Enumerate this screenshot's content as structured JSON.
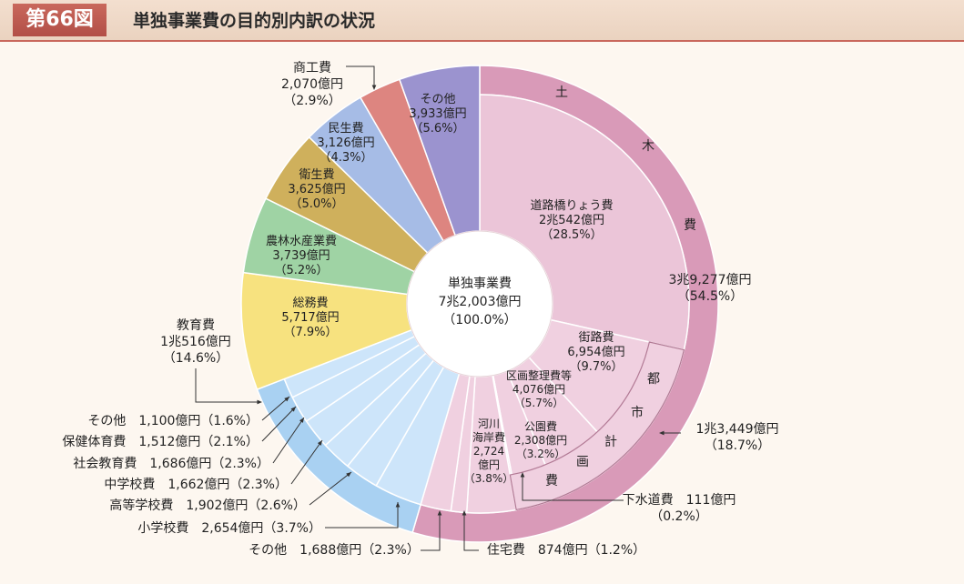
{
  "header": {
    "figure_number": "第66図",
    "title": "単独事業費の目的別内訳の状況"
  },
  "colors": {
    "header_accent": "#c0594f",
    "civil_outer": "#d99ab8",
    "education_outer": "#a9d1f2"
  },
  "chart_data": {
    "type": "pie",
    "subtype": "nested donut",
    "start": "12 o'clock",
    "direction": "clockwise",
    "center": {
      "lines": [
        "単独事業費",
        "7兆2,003億円",
        "（100.0%）"
      ]
    },
    "inner": [
      {
        "key": "road",
        "lines": [
          "道路橋りょう費",
          "2兆542億円",
          "（28.5%）"
        ],
        "value_oku": 20542,
        "percent": 28.5,
        "color": "#ebc5d8"
      },
      {
        "key": "street",
        "lines": [
          "街路費",
          "6,954億円",
          "（9.7%）"
        ],
        "value_oku": 6954,
        "percent": 9.7,
        "color": "#f0d0e0"
      },
      {
        "key": "land",
        "lines": [
          "区画整理費等",
          "4,076億円",
          "（5.7%）"
        ],
        "value_oku": 4076,
        "percent": 5.7,
        "color": "#f0d0e0"
      },
      {
        "key": "park",
        "lines": [
          "公園費",
          "2,308億円",
          "（3.2%）"
        ],
        "value_oku": 2308,
        "percent": 3.2,
        "color": "#f0d0e0"
      },
      {
        "key": "sewer",
        "value_oku": 111,
        "percent": 0.2,
        "color": "#f0d0e0"
      },
      {
        "key": "river",
        "lines": [
          "河川",
          "海岸費",
          "2,724",
          "億円",
          "（3.8%）"
        ],
        "value_oku": 2724,
        "percent": 3.8,
        "color": "#f0d0e0"
      },
      {
        "key": "housing",
        "value_oku": 874,
        "percent": 1.2,
        "color": "#f0d0e0"
      },
      {
        "key": "civil-other",
        "value_oku": 1688,
        "percent": 2.3,
        "color": "#f0d0e0"
      },
      {
        "key": "elementary",
        "value_oku": 2654,
        "percent": 3.7,
        "color": "#cde5fa"
      },
      {
        "key": "highschool",
        "value_oku": 1902,
        "percent": 2.6,
        "color": "#cde5fa"
      },
      {
        "key": "middle",
        "value_oku": 1662,
        "percent": 2.3,
        "color": "#cde5fa"
      },
      {
        "key": "social-edu",
        "value_oku": 1686,
        "percent": 2.3,
        "color": "#cde5fa"
      },
      {
        "key": "sports",
        "value_oku": 1512,
        "percent": 2.1,
        "color": "#cde5fa"
      },
      {
        "key": "edu-other",
        "value_oku": 1100,
        "percent": 1.6,
        "color": "#cde5fa"
      },
      {
        "key": "general",
        "lines": [
          "総務費",
          "5,717億円",
          "（7.9%）"
        ],
        "value_oku": 5717,
        "percent": 7.9,
        "color": "#f7e27f"
      },
      {
        "key": "agri",
        "lines": [
          "農林水産業費",
          "3,739億円",
          "（5.2%）"
        ],
        "value_oku": 3739,
        "percent": 5.2,
        "color": "#9fd3a4"
      },
      {
        "key": "sanitation",
        "lines": [
          "衛生費",
          "3,625億円",
          "（5.0%）"
        ],
        "value_oku": 3625,
        "percent": 5.0,
        "color": "#cfb05c"
      },
      {
        "key": "welfare",
        "lines": [
          "民生費",
          "3,126億円",
          "（4.3%）"
        ],
        "value_oku": 3126,
        "percent": 4.3,
        "color": "#a6bce6"
      },
      {
        "key": "commerce",
        "value_oku": 2070,
        "percent": 2.9,
        "color": "#dd8580"
      },
      {
        "key": "other",
        "lines": [
          "その他",
          "3,933億円",
          "（5.6%）"
        ],
        "value_oku": 3933,
        "percent": 5.6,
        "color": "#9b93cf"
      }
    ],
    "outer": [
      {
        "key": "civil",
        "label_vertical": [
          "土",
          "木",
          "費"
        ],
        "lines": [
          "3兆9,277億円",
          "（54.5%）"
        ],
        "value_oku": 39277,
        "percent": 54.5,
        "from": "road",
        "to": "civil-other"
      },
      {
        "key": "education",
        "lines": [
          "教育費",
          "1兆516億円",
          "（14.6%）"
        ],
        "value_oku": 10516,
        "percent": 14.6,
        "from": "elementary",
        "to": "edu-other"
      }
    ],
    "middle": [
      {
        "key": "urban",
        "label_vertical": [
          "都",
          "市",
          "計",
          "画",
          "費"
        ],
        "lines": [
          "1兆3,449億円",
          "（18.7%）"
        ],
        "value_oku": 13449,
        "percent": 18.7,
        "from": "street",
        "to": "sewer"
      }
    ],
    "callouts": {
      "commerce": [
        "商工費",
        "2,070億円",
        "（2.9%）"
      ],
      "sewer": [
        "下水道費　111億円",
        "（0.2%）"
      ],
      "housing": "住宅費　874億円（1.2%）",
      "civil-other": "その他　1,688億円（2.3%）",
      "elementary": "小学校費　2,654億円（3.7%）",
      "highschool": "高等学校費　1,902億円（2.6%）",
      "middle": "中学校費　1,662億円（2.3%）",
      "social-edu": "社会教育費　1,686億円（2.3%）",
      "sports": "保健体育費　1,512億円（2.1%）",
      "edu-other": "その他　1,100億円（1.6%）"
    }
  }
}
